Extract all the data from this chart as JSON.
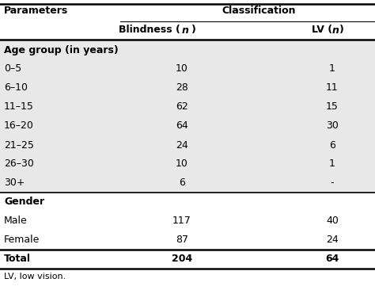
{
  "col_headers": [
    "Parameters",
    "Blindness (n)",
    "LV (n)"
  ],
  "classification_header": "Classification",
  "rows": [
    {
      "label": "Age group (in years)",
      "blindness": "",
      "lv": "",
      "bold": true,
      "section_header": true,
      "gray_bg": true
    },
    {
      "label": "0–5",
      "blindness": "10",
      "lv": "1",
      "bold": false,
      "section_header": false,
      "gray_bg": true
    },
    {
      "label": "6–10",
      "blindness": "28",
      "lv": "11",
      "bold": false,
      "section_header": false,
      "gray_bg": true
    },
    {
      "label": "11–15",
      "blindness": "62",
      "lv": "15",
      "bold": false,
      "section_header": false,
      "gray_bg": true
    },
    {
      "label": "16–20",
      "blindness": "64",
      "lv": "30",
      "bold": false,
      "section_header": false,
      "gray_bg": true
    },
    {
      "label": "21–25",
      "blindness": "24",
      "lv": "6",
      "bold": false,
      "section_header": false,
      "gray_bg": true
    },
    {
      "label": "26–30",
      "blindness": "10",
      "lv": "1",
      "bold": false,
      "section_header": false,
      "gray_bg": true
    },
    {
      "label": "30+",
      "blindness": "6",
      "lv": "-",
      "bold": false,
      "section_header": false,
      "gray_bg": true
    },
    {
      "label": "Gender",
      "blindness": "",
      "lv": "",
      "bold": true,
      "section_header": true,
      "gray_bg": false
    },
    {
      "label": "Male",
      "blindness": "117",
      "lv": "40",
      "bold": false,
      "section_header": false,
      "gray_bg": false
    },
    {
      "label": "Female",
      "blindness": "87",
      "lv": "24",
      "bold": false,
      "section_header": false,
      "gray_bg": false
    },
    {
      "label": "Total",
      "blindness": "204",
      "lv": "64",
      "bold": true,
      "section_header": false,
      "gray_bg": false
    }
  ],
  "footnote": "LV, low vision.",
  "bg_color": "#ffffff",
  "gray_bg_color": "#e8e8e8",
  "text_color": "#000000",
  "line_color": "#000000",
  "fig_width": 4.74,
  "fig_height": 3.71,
  "dpi": 100
}
